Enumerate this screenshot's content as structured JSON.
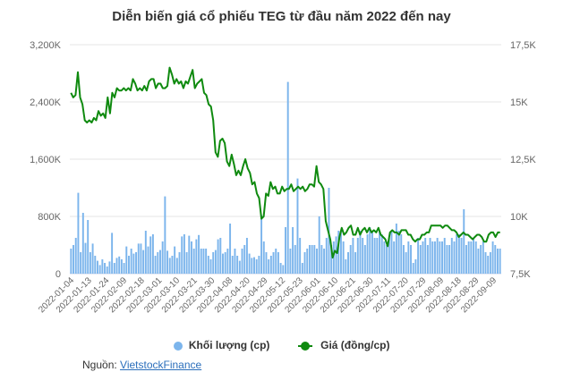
{
  "chart_data": {
    "type": "bar+line",
    "title": "Diễn biến giá cổ phiếu TEG từ đầu năm 2022 đến nay",
    "y_left": {
      "ticks": [
        "3,200K",
        "2,400K",
        "1,600K",
        "800K",
        "0"
      ],
      "min": 0,
      "max": 3200000
    },
    "y_right": {
      "ticks": [
        "17,5K",
        "15K",
        "12,5K",
        "10K",
        "7,5K"
      ],
      "min": 7500,
      "max": 17500
    },
    "x_labels": [
      "2022-01-04",
      "2022-01-13",
      "2022-01-24",
      "2022-02-09",
      "2022-02-18",
      "2022-03-01",
      "2022-03-10",
      "2022-03-21",
      "2022-03-30",
      "2022-04-08",
      "2022-04-20",
      "2022-04-29",
      "2022-05-12",
      "2022-05-23",
      "2022-06-01",
      "2022-06-10",
      "2022-06-21",
      "2022-06-30",
      "2022-07-11",
      "2022-07-20",
      "2022-07-29",
      "2022-08-09",
      "2022-08-18",
      "2022-08-29",
      "2022-09-09"
    ],
    "series": [
      {
        "name": "Khối lượng (cp)",
        "type": "bar",
        "axis": "left",
        "color": "#7cb5ec",
        "values": [
          350000,
          400000,
          500000,
          1130000,
          300000,
          850000,
          430000,
          750000,
          300000,
          420000,
          250000,
          180000,
          120000,
          200000,
          150000,
          100000,
          170000,
          570000,
          150000,
          220000,
          240000,
          200000,
          150000,
          380000,
          250000,
          350000,
          280000,
          300000,
          420000,
          420000,
          330000,
          600000,
          380000,
          520000,
          550000,
          250000,
          300000,
          330000,
          450000,
          1080000,
          320000,
          220000,
          250000,
          380000,
          220000,
          300000,
          520000,
          550000,
          300000,
          530000,
          450000,
          350000,
          480000,
          540000,
          350000,
          350000,
          350000,
          250000,
          200000,
          300000,
          330000,
          480000,
          500000,
          280000,
          300000,
          350000,
          700000,
          250000,
          350000,
          250000,
          180000,
          350000,
          400000,
          500000,
          280000,
          220000,
          230000,
          200000,
          250000,
          820000,
          450000,
          300000,
          200000,
          250000,
          300000,
          350000,
          300000,
          150000,
          120000,
          650000,
          2680000,
          350000,
          650000,
          400000,
          1330000,
          500000,
          150000,
          300000,
          350000,
          400000,
          400000,
          400000,
          350000,
          800000,
          400000,
          350000,
          500000,
          1200000,
          400000,
          450000,
          520000,
          600000,
          600000,
          450000,
          200000,
          300000,
          400000,
          500000,
          300000,
          500000,
          600000,
          500000,
          400000,
          550000,
          650000,
          600000,
          500000,
          500000,
          600000,
          550000,
          450000,
          400000,
          500000,
          600000,
          450000,
          700000,
          600000,
          550000,
          400000,
          300000,
          450000,
          400000,
          150000,
          200000,
          500000,
          400000,
          450000,
          500000,
          400000,
          500000,
          450000,
          450000,
          500000,
          450000,
          450000,
          500000,
          400000,
          400000,
          500000,
          450000,
          550000,
          550000,
          500000,
          900000,
          400000,
          450000,
          450000,
          500000,
          450000,
          350000,
          400000,
          450000,
          300000,
          250000,
          300000,
          450000,
          400000,
          350000,
          350000
        ]
      },
      {
        "name": "Giá (đồng/cp)",
        "type": "line",
        "axis": "right",
        "color": "#0f8a0f",
        "values": [
          15400,
          15200,
          15300,
          16300,
          15200,
          14900,
          14200,
          14100,
          14200,
          14100,
          14300,
          14200,
          14600,
          14400,
          14500,
          14300,
          15200,
          14500,
          15400,
          15200,
          15600,
          15500,
          15500,
          15600,
          15500,
          15600,
          15500,
          16000,
          15800,
          15500,
          15600,
          15500,
          15700,
          15500,
          15900,
          16000,
          16000,
          15600,
          15800,
          15800,
          15600,
          15600,
          15700,
          16500,
          16200,
          15800,
          16000,
          15800,
          15900,
          15600,
          15900,
          15800,
          16100,
          16400,
          15600,
          15800,
          15900,
          16000,
          15400,
          15300,
          14900,
          14800,
          14200,
          12800,
          12600,
          13300,
          13400,
          13200,
          12400,
          12200,
          12700,
          12300,
          11800,
          12000,
          11800,
          12200,
          12500,
          12100,
          11900,
          11400,
          11500,
          11000,
          10800,
          9900,
          10000,
          11000,
          10900,
          11500,
          11200,
          11300,
          11000,
          11000,
          11300,
          11100,
          11200,
          11200,
          11400,
          11100,
          11200,
          11300,
          11200,
          11300,
          11100,
          11200,
          11400,
          11400,
          11300,
          12200,
          11500,
          11400,
          11200,
          9800,
          9400,
          9000,
          8200,
          8500,
          8400,
          9100,
          9500,
          9200,
          9300,
          9500,
          9600,
          9200,
          9200,
          9500,
          9200,
          9400,
          9500,
          9300,
          9500,
          9300,
          9400,
          9300,
          9500,
          9200,
          9100,
          9000,
          8700,
          9300,
          9400,
          9300,
          9300,
          9200,
          9400,
          9400,
          9400,
          9200,
          9200,
          9000,
          8900,
          9000,
          9000,
          9200,
          9200,
          9300,
          9300,
          9600,
          9600,
          9600,
          9600,
          9600,
          9500,
          9600,
          9600,
          9500,
          9400,
          9400,
          9300,
          9100,
          9200,
          9300,
          9200,
          9200,
          9100,
          9000,
          9100,
          9200,
          9200,
          9100,
          8900,
          8900,
          9200,
          9300,
          9300,
          9100,
          9300,
          9300
        ]
      }
    ],
    "legend_position": "bottom",
    "grid": "horizontal"
  },
  "source": {
    "label": "Nguồn: ",
    "link_text": "VietstockFinance"
  }
}
